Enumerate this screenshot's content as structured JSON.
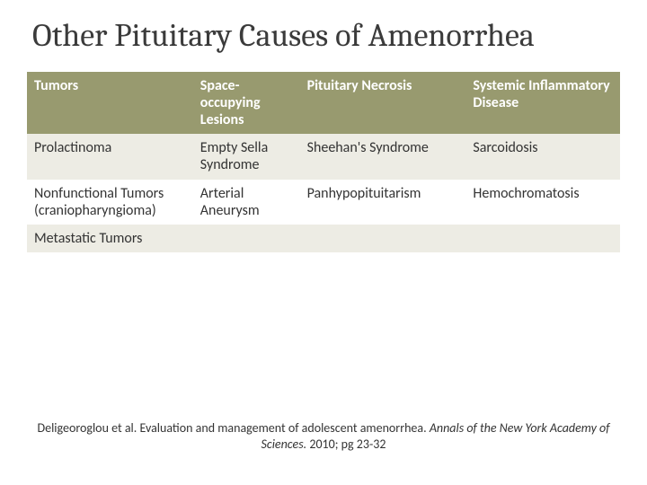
{
  "title": "Other Pituitary Causes of Amenorrhea",
  "table": {
    "header_bg": "#989a6f",
    "header_fg": "#ffffff",
    "row_alt_bg": "#edece4",
    "row_bg": "#ffffff",
    "font_family": "Calibri",
    "header_fontsize": 16,
    "cell_fontsize": 16,
    "col_widths_pct": [
      28,
      18,
      28,
      26
    ],
    "columns": [
      "Tumors",
      "Space-occupying Lesions",
      "Pituitary Necrosis",
      "Systemic Inflammatory Disease"
    ],
    "rows": [
      [
        "Prolactinoma",
        "Empty Sella Syndrome",
        "Sheehan's Syndrome",
        "Sarcoidosis"
      ],
      [
        "Nonfunctional Tumors (craniopharyngioma)",
        "Arterial Aneurysm",
        "Panhypopituitarism",
        "Hemochromatosis"
      ],
      [
        "Metastatic Tumors",
        "",
        "",
        ""
      ]
    ]
  },
  "citation": {
    "prefix": "Deligeoroglou et al. Evaluation and management of adolescent amenorrhea. ",
    "italic": "Annals of the New York Academy of Sciences.",
    "suffix": " 2010; pg 23-32"
  },
  "layout": {
    "slide_width": 720,
    "slide_height": 540,
    "title_fontsize": 36,
    "title_color": "#3b3b3b",
    "citation_fontsize": 14
  }
}
